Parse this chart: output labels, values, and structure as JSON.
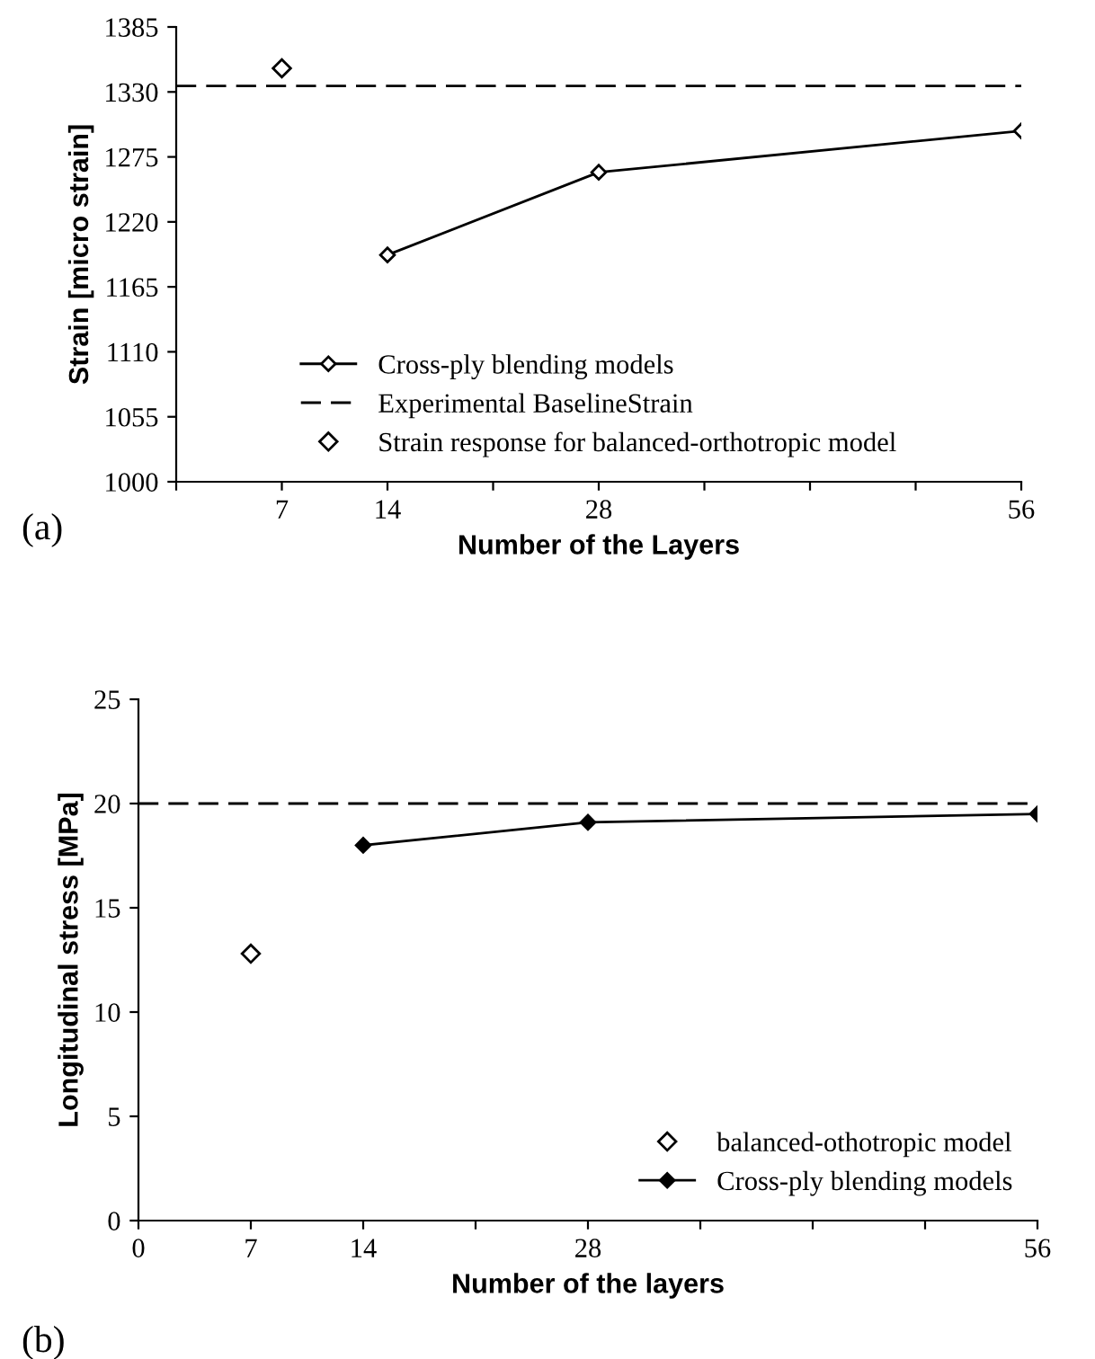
{
  "chart_data": [
    {
      "type": "line",
      "xlabel": "Number of the Layers",
      "ylabel": "Strain [micro strain]",
      "annotations": [
        "(a)"
      ],
      "xlim": [
        0,
        56
      ],
      "xticks": [
        {
          "value": 0,
          "label": null
        },
        7,
        14,
        {
          "value": 21,
          "label": null
        },
        28,
        {
          "value": 35,
          "label": null
        },
        {
          "value": 42,
          "label": null
        },
        {
          "value": 49,
          "label": null
        },
        56
      ],
      "ylim": [
        1000,
        1385
      ],
      "yticks": [
        1000,
        1055,
        1110,
        1165,
        1220,
        1275,
        1330,
        1385
      ],
      "grid": false,
      "legend": "bottom",
      "marker": "diamond",
      "series": [
        {
          "name": "Cross-ply blending models",
          "color": "#000000",
          "x": [
            14,
            28,
            56
          ],
          "values": [
            1192,
            1262,
            1297
          ]
        },
        {
          "name": "Strain response for balanced-orthotropic model",
          "type": "scatter",
          "color": "#000000",
          "x": [
            7
          ],
          "values": [
            1350
          ]
        }
      ],
      "ref_lines": [
        {
          "axis": "y",
          "value": 1335,
          "label": "Experimental BaselineStrain",
          "color": "#000000",
          "line_style": "dashed"
        }
      ]
    },
    {
      "type": "line",
      "xlabel": "Number of the layers",
      "ylabel": "Longitudinal stress [MPa]",
      "annotations": [
        "(b)"
      ],
      "xlim": [
        0,
        56
      ],
      "xticks": [
        0,
        7,
        14,
        {
          "value": 21,
          "label": null
        },
        28,
        {
          "value": 35,
          "label": null
        },
        {
          "value": 42,
          "label": null
        },
        {
          "value": 49,
          "label": null
        },
        56
      ],
      "ylim": [
        0,
        25
      ],
      "yticks": [
        0,
        5,
        10,
        15,
        20,
        25
      ],
      "grid": false,
      "legend": "bottom right",
      "marker": "diamond",
      "series": [
        {
          "name": "balanced-othotropic model",
          "type": "scatter",
          "color": "#000000",
          "x": [
            7
          ],
          "values": [
            12.8
          ]
        },
        {
          "name": "Cross-ply blending models",
          "color": "#000000",
          "x": [
            14,
            28,
            56
          ],
          "values": [
            18.0,
            19.1,
            19.5
          ]
        }
      ],
      "ref_lines": [
        {
          "axis": "y",
          "value": 20,
          "color": "#000000",
          "line_style": "dashed"
        }
      ]
    }
  ]
}
